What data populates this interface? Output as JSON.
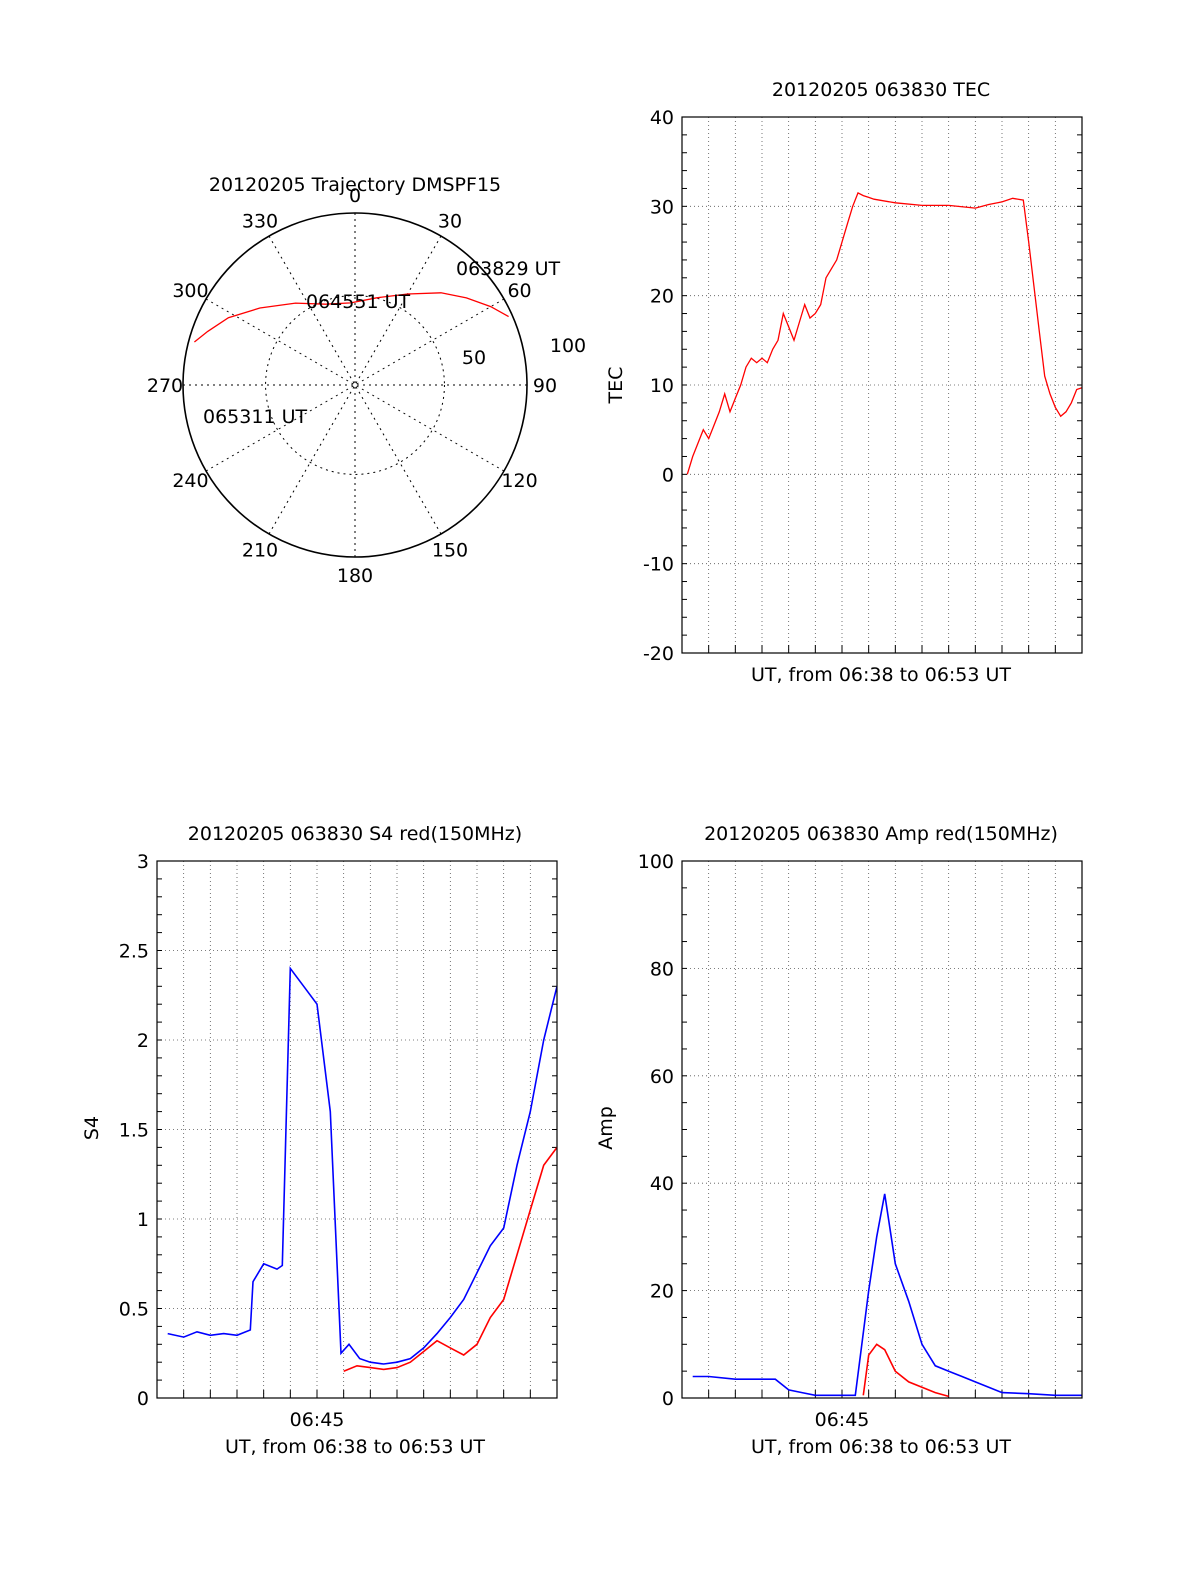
{
  "chart_data": [
    {
      "type": "polar",
      "title": "20120205 Trajectory DMSPF15",
      "azimuth_labels": [
        "0",
        "30",
        "60",
        "90",
        "120",
        "150",
        "180",
        "210",
        "240",
        "270",
        "300",
        "330"
      ],
      "radial_labels": [
        "50",
        "100"
      ],
      "series": [
        {
          "color": "#ff0000",
          "points": [
            {
              "az": 66,
              "el": 2
            },
            {
              "az": 60,
              "el": 8
            },
            {
              "az": 52,
              "el": 16
            },
            {
              "az": 43,
              "el": 24
            },
            {
              "az": 30,
              "el": 35
            },
            {
              "az": 14,
              "el": 43
            },
            {
              "az": -3,
              "el": 47
            },
            {
              "az": -20,
              "el": 45
            },
            {
              "az": -36,
              "el": 37
            },
            {
              "az": -51,
              "el": 26
            },
            {
              "az": -62,
              "el": 15
            },
            {
              "az": -70,
              "el": 8
            },
            {
              "az": -75,
              "el": 3
            }
          ]
        }
      ],
      "annotations": [
        {
          "text": "063829 UT",
          "az": 66,
          "el": 2
        },
        {
          "text": "064551 UT",
          "az": -3,
          "el": 47
        },
        {
          "text": "065311 UT",
          "az": -75,
          "el": 3
        }
      ]
    },
    {
      "type": "line",
      "title": "20120205 063830 TEC",
      "xlabel": "UT, from 06:38 to 06:53 UT",
      "ylabel": "TEC",
      "xlim": [
        0,
        15
      ],
      "ylim": [
        -20,
        40
      ],
      "yticks": [
        "40",
        "30",
        "20",
        "10",
        "0",
        "-10",
        "-20"
      ],
      "grid": true,
      "series": [
        {
          "color": "#ff0000",
          "x": [
            0.2,
            0.4,
            0.6,
            0.8,
            1.0,
            1.2,
            1.4,
            1.6,
            1.8,
            2.0,
            2.2,
            2.4,
            2.6,
            2.8,
            3.0,
            3.2,
            3.4,
            3.6,
            3.8,
            4.0,
            4.2,
            4.4,
            4.6,
            4.8,
            5.0,
            5.2,
            5.4,
            5.6,
            5.8,
            6.0,
            6.2,
            6.4,
            6.6,
            6.8,
            7.0,
            7.2,
            8.0,
            9.0,
            10.0,
            11.0,
            11.5,
            12.0,
            12.4,
            12.8,
            13.0,
            13.2,
            13.4,
            13.6,
            13.8,
            14.0,
            14.2,
            14.4,
            14.6,
            14.8,
            15.0
          ],
          "y": [
            0,
            2,
            3.5,
            5,
            4,
            5.5,
            7,
            9,
            7,
            8.5,
            10,
            12,
            13,
            12.5,
            13,
            12.5,
            14,
            15,
            18,
            16.5,
            15,
            17,
            19,
            17.5,
            18,
            19,
            22,
            23,
            24,
            26,
            28,
            30,
            31.5,
            31.2,
            31,
            30.8,
            30.4,
            30.1,
            30.1,
            29.8,
            30.2,
            30.5,
            30.9,
            30.7,
            26,
            21,
            16,
            11,
            9,
            7.5,
            6.5,
            7,
            8,
            9.5,
            9.7
          ]
        }
      ]
    },
    {
      "type": "line",
      "title": "20120205 063830 S4 red(150MHz)",
      "xlabel": "UT, from 06:38 to 06:53 UT",
      "ylabel": "S4",
      "xlim": [
        0,
        15
      ],
      "ylim": [
        0,
        3
      ],
      "yticks": [
        "3",
        "2.5",
        "2",
        "1.5",
        "1",
        "0.5",
        "0"
      ],
      "xticks": [
        {
          "x": 6.0,
          "label": "06:45"
        }
      ],
      "grid": true,
      "series": [
        {
          "color": "#0000ff",
          "x": [
            0.4,
            1.0,
            1.5,
            2.0,
            2.5,
            3.0,
            3.5,
            3.6,
            4.0,
            4.5,
            4.7,
            5.0,
            5.5,
            6.0,
            6.5,
            6.9,
            7.2,
            7.6,
            8.0,
            8.5,
            9.0,
            9.5,
            10.0,
            10.5,
            11.0,
            11.5,
            12.0,
            12.5,
            13.0,
            13.5,
            14.0,
            14.5,
            15.0
          ],
          "y": [
            0.36,
            0.34,
            0.37,
            0.35,
            0.36,
            0.35,
            0.38,
            0.65,
            0.75,
            0.72,
            0.74,
            2.4,
            2.3,
            2.2,
            1.6,
            0.25,
            0.3,
            0.22,
            0.2,
            0.19,
            0.2,
            0.22,
            0.28,
            0.36,
            0.45,
            0.55,
            0.7,
            0.85,
            0.95,
            1.3,
            1.6,
            2.0,
            2.3
          ]
        },
        {
          "color": "#ff0000",
          "x": [
            7.0,
            7.5,
            8.0,
            8.5,
            9.0,
            9.5,
            10.0,
            10.5,
            11.0,
            11.5,
            12.0,
            12.5,
            13.0,
            13.5,
            14.0,
            14.5,
            15.0
          ],
          "y": [
            0.15,
            0.18,
            0.17,
            0.16,
            0.17,
            0.2,
            0.26,
            0.32,
            0.28,
            0.24,
            0.3,
            0.45,
            0.55,
            0.8,
            1.05,
            1.3,
            1.4
          ]
        }
      ]
    },
    {
      "type": "line",
      "title": "20120205 063830 Amp red(150MHz)",
      "xlabel": "UT, from 06:38 to 06:53 UT",
      "ylabel": "Amp",
      "xlim": [
        0,
        15
      ],
      "ylim": [
        0,
        100
      ],
      "yticks": [
        "100",
        "80",
        "60",
        "40",
        "20",
        "0"
      ],
      "xticks": [
        {
          "x": 6.0,
          "label": "06:45"
        }
      ],
      "grid": true,
      "series": [
        {
          "color": "#0000ff",
          "x": [
            0.4,
            1.0,
            2.0,
            3.0,
            3.5,
            4.0,
            4.5,
            5.0,
            5.5,
            6.0,
            6.5,
            7.0,
            7.3,
            7.6,
            8.0,
            8.5,
            9.0,
            9.5,
            10.0,
            10.5,
            11.0,
            11.5,
            12.0,
            13.0,
            14.0,
            15.0
          ],
          "y": [
            4,
            4,
            3.5,
            3.5,
            3.5,
            1.5,
            1,
            0.5,
            0.5,
            0.5,
            0.5,
            20,
            30,
            38,
            25,
            18,
            10,
            6,
            5,
            4,
            3,
            2,
            1,
            0.8,
            0.5,
            0.5
          ]
        },
        {
          "color": "#ff0000",
          "x": [
            6.8,
            7.0,
            7.3,
            7.6,
            8.0,
            8.5,
            9.0,
            9.5,
            10.0
          ],
          "y": [
            0.5,
            8,
            10,
            9,
            5,
            3,
            2,
            1,
            0.3
          ]
        }
      ]
    }
  ]
}
